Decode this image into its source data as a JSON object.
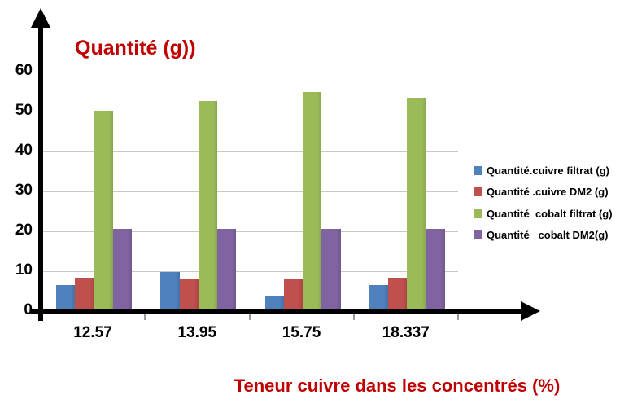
{
  "chart_data": {
    "type": "bar",
    "title": "Quantité (g))",
    "xlabel": "Teneur cuivre dans les concentrés (%)",
    "ylabel": "",
    "categories": [
      "12.57",
      "13.95",
      "15.75",
      "18.337"
    ],
    "series": [
      {
        "name": "Quantité.cuivre filtrat (g)",
        "color": "#4F81BD",
        "values": [
          6.5,
          9.8,
          3.8,
          6.5
        ]
      },
      {
        "name": "Quantité .cuivre DM2 (g)",
        "color": "#C0504D",
        "values": [
          8.3,
          8.2,
          8.2,
          8.3
        ]
      },
      {
        "name": "Quantité  cobalt filtrat (g)",
        "color": "#9BBB59",
        "values": [
          50.3,
          52.7,
          54.8,
          53.5
        ]
      },
      {
        "name": "Quantité   cobalt DM2(g)",
        "color": "#8064A2",
        "values": [
          20.7,
          20.7,
          20.7,
          20.7
        ]
      }
    ],
    "yticks": [
      0,
      10,
      20,
      30,
      40,
      50,
      60
    ],
    "ylim": [
      0,
      60
    ],
    "grid": "horizontal",
    "legend_position": "right",
    "colors": {
      "title_text": "#C00000",
      "axis": "#000000",
      "gridline": "#c8c8c8",
      "tick_label_text": "#000000"
    }
  }
}
